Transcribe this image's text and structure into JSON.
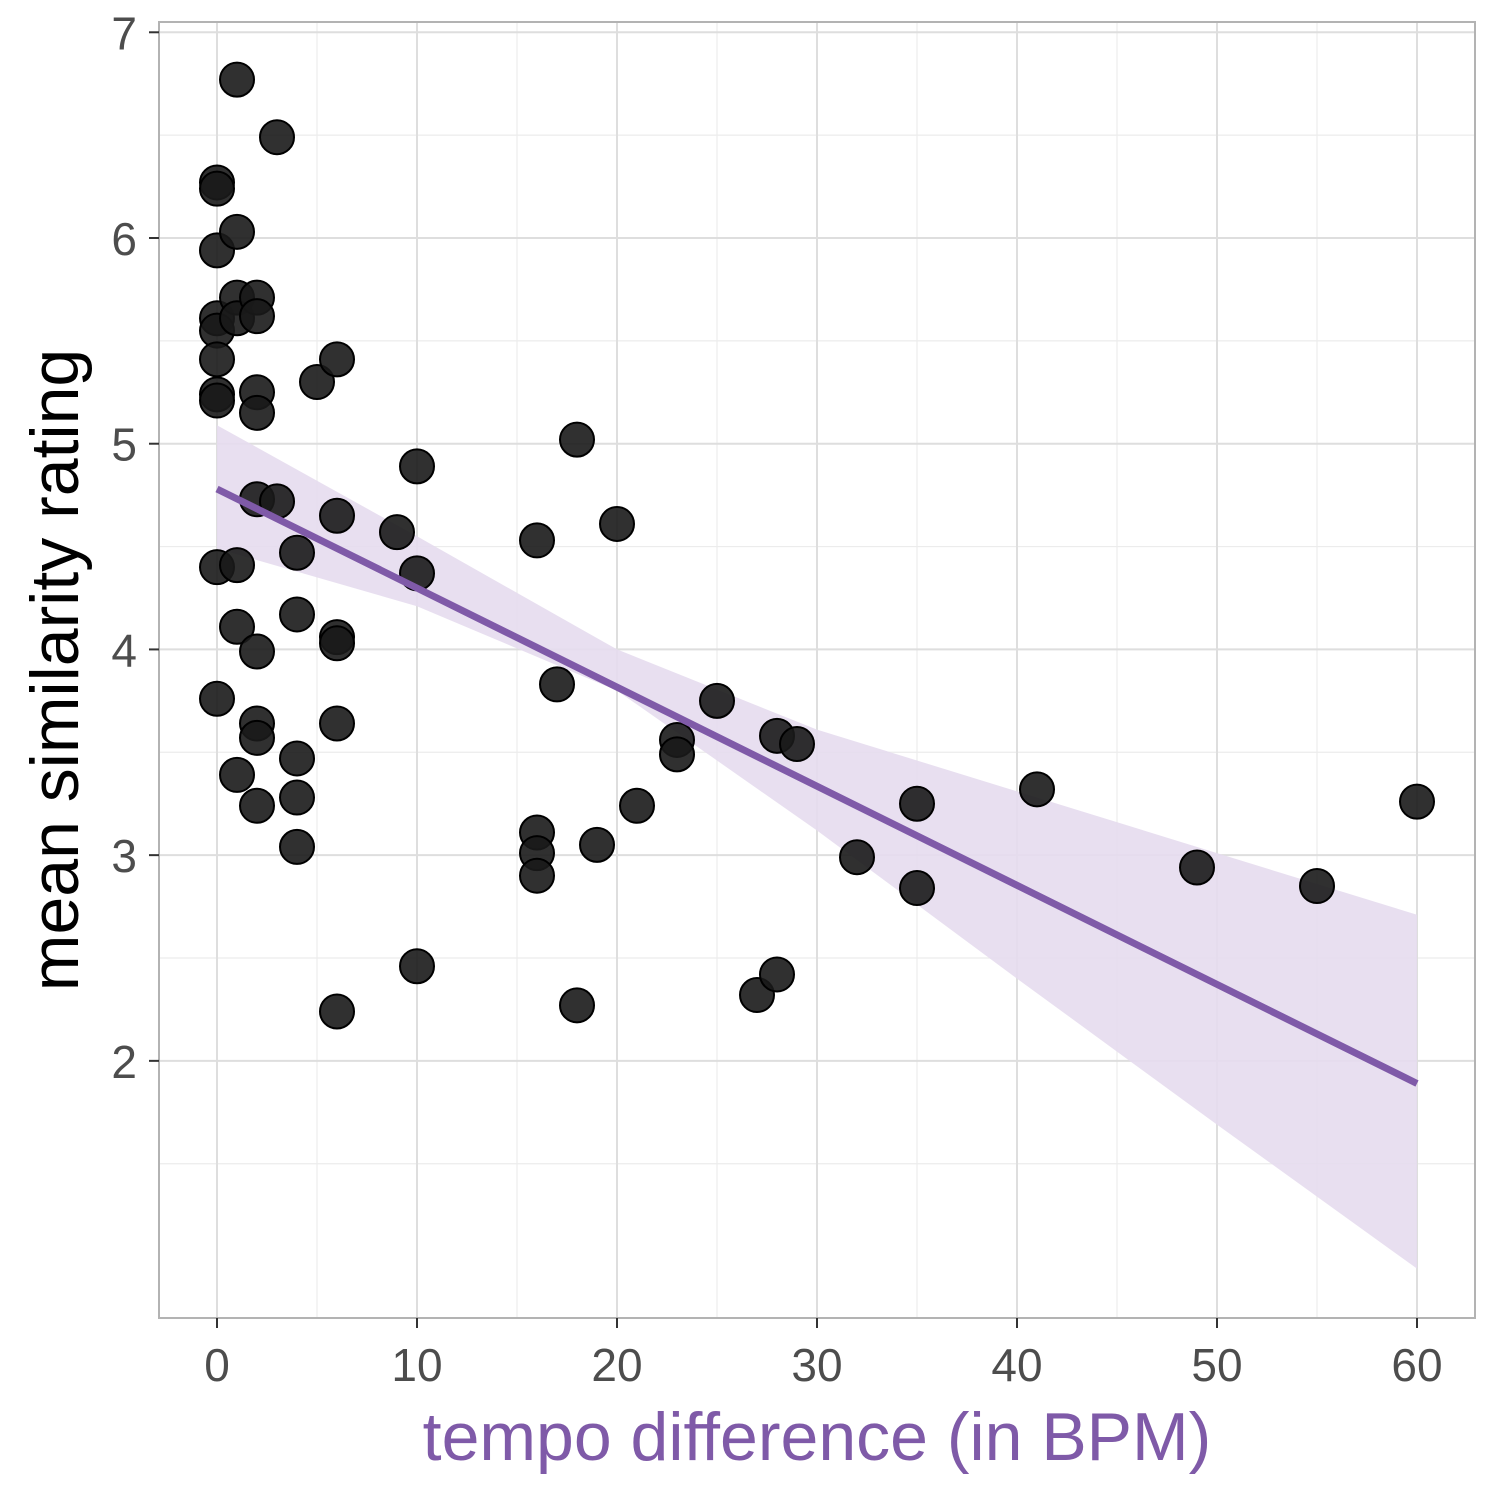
{
  "chart_data": {
    "type": "scatter",
    "title": "",
    "xlabel": "tempo difference (in BPM)",
    "ylabel": "mean similarity rating",
    "xlim": [
      -2.9,
      62.9
    ],
    "ylim": [
      0.75,
      7.05
    ],
    "x_ticks": [
      0,
      10,
      20,
      30,
      40,
      50,
      60
    ],
    "y_ticks": [
      2,
      3,
      4,
      5,
      6,
      7
    ],
    "x_tick_labels": [
      "0",
      "10",
      "20",
      "30",
      "40",
      "50",
      "60"
    ],
    "y_tick_labels": [
      "2",
      "3",
      "4",
      "5",
      "6",
      "7"
    ],
    "grid": true,
    "legend": "none",
    "colors": {
      "points": "#1a1a1a",
      "fit_line": "#7f5aa8",
      "ribbon": "#e5dcee",
      "xlabel": "#7f5aa8",
      "grid": "#dedede",
      "panel_border": "#b3b3b3"
    },
    "points": [
      {
        "x": 0,
        "y": 6.27
      },
      {
        "x": 0,
        "y": 6.24
      },
      {
        "x": 0,
        "y": 5.94
      },
      {
        "x": 0,
        "y": 5.61
      },
      {
        "x": 0,
        "y": 5.55
      },
      {
        "x": 0,
        "y": 5.41
      },
      {
        "x": 0,
        "y": 5.24
      },
      {
        "x": 0,
        "y": 5.21
      },
      {
        "x": 0,
        "y": 4.4
      },
      {
        "x": 0,
        "y": 3.76
      },
      {
        "x": 1,
        "y": 6.77
      },
      {
        "x": 1,
        "y": 6.03
      },
      {
        "x": 1,
        "y": 5.71
      },
      {
        "x": 1,
        "y": 5.61
      },
      {
        "x": 1,
        "y": 4.41
      },
      {
        "x": 1,
        "y": 4.11
      },
      {
        "x": 1,
        "y": 3.39
      },
      {
        "x": 2,
        "y": 5.71
      },
      {
        "x": 2,
        "y": 5.62
      },
      {
        "x": 2,
        "y": 5.25
      },
      {
        "x": 2,
        "y": 5.15
      },
      {
        "x": 2,
        "y": 4.73
      },
      {
        "x": 2,
        "y": 3.99
      },
      {
        "x": 2,
        "y": 3.64
      },
      {
        "x": 2,
        "y": 3.57
      },
      {
        "x": 2,
        "y": 3.24
      },
      {
        "x": 3,
        "y": 6.49
      },
      {
        "x": 3,
        "y": 4.72
      },
      {
        "x": 4,
        "y": 4.47
      },
      {
        "x": 4,
        "y": 4.17
      },
      {
        "x": 4,
        "y": 3.47
      },
      {
        "x": 4,
        "y": 3.28
      },
      {
        "x": 4,
        "y": 3.04
      },
      {
        "x": 5,
        "y": 5.3
      },
      {
        "x": 6,
        "y": 5.41
      },
      {
        "x": 6,
        "y": 4.65
      },
      {
        "x": 6,
        "y": 4.06
      },
      {
        "x": 6,
        "y": 4.03
      },
      {
        "x": 6,
        "y": 3.64
      },
      {
        "x": 6,
        "y": 2.24
      },
      {
        "x": 9,
        "y": 4.57
      },
      {
        "x": 10,
        "y": 4.89
      },
      {
        "x": 10,
        "y": 4.37
      },
      {
        "x": 10,
        "y": 2.46
      },
      {
        "x": 16,
        "y": 4.53
      },
      {
        "x": 16,
        "y": 3.11
      },
      {
        "x": 16,
        "y": 3.01
      },
      {
        "x": 16,
        "y": 2.9
      },
      {
        "x": 17,
        "y": 3.83
      },
      {
        "x": 18,
        "y": 5.02
      },
      {
        "x": 18,
        "y": 2.27
      },
      {
        "x": 19,
        "y": 3.05
      },
      {
        "x": 20,
        "y": 4.61
      },
      {
        "x": 21,
        "y": 3.24
      },
      {
        "x": 23,
        "y": 3.56
      },
      {
        "x": 23,
        "y": 3.49
      },
      {
        "x": 25,
        "y": 3.75
      },
      {
        "x": 27,
        "y": 2.32
      },
      {
        "x": 28,
        "y": 3.58
      },
      {
        "x": 28,
        "y": 2.42
      },
      {
        "x": 29,
        "y": 3.54
      },
      {
        "x": 32,
        "y": 2.99
      },
      {
        "x": 35,
        "y": 3.25
      },
      {
        "x": 35,
        "y": 2.84
      },
      {
        "x": 41,
        "y": 3.32
      },
      {
        "x": 49,
        "y": 2.94
      },
      {
        "x": 55,
        "y": 2.85
      },
      {
        "x": 60,
        "y": 3.26
      }
    ],
    "fit_line": {
      "x": [
        0,
        60
      ],
      "y": [
        4.78,
        1.89
      ]
    },
    "ribbon": {
      "x": [
        0,
        10,
        20,
        30,
        40,
        50,
        60
      ],
      "lower": [
        4.49,
        4.21,
        3.8,
        3.12,
        2.4,
        1.69,
        0.99
      ],
      "upper": [
        5.09,
        4.55,
        4.0,
        3.61,
        3.31,
        3.01,
        2.71
      ]
    }
  }
}
